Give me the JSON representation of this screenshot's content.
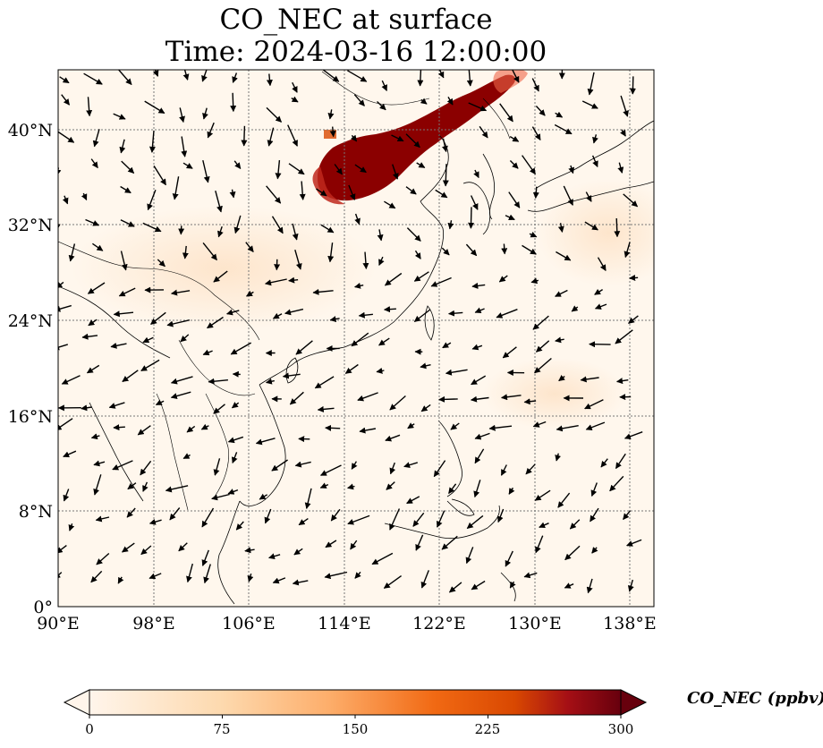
{
  "title": {
    "line1": "CO_NEC at surface",
    "line2": "Time: 2024-03-16 12:00:00"
  },
  "map": {
    "lon_range": [
      90,
      140
    ],
    "lat_range": [
      0,
      45
    ],
    "lon_ticks": [
      "90°E",
      "98°E",
      "106°E",
      "114°E",
      "122°E",
      "130°E",
      "138°E"
    ],
    "lat_ticks": [
      "0°",
      "8°N",
      "16°N",
      "24°N",
      "32°N",
      "40°N"
    ],
    "gridlines": true,
    "features": [
      "coastlines",
      "country borders",
      "wind vectors"
    ]
  },
  "colorbar": {
    "label": "CO_NEC (ppbv)",
    "ticks": [
      "0",
      "75",
      "150",
      "225",
      "300"
    ],
    "range": [
      0,
      300
    ],
    "extend": "both",
    "colormap": [
      "#fff5eb",
      "#fdd9ae",
      "#fdae6b",
      "#f16913",
      "#d94801",
      "#a50f15",
      "#67000d"
    ]
  }
}
